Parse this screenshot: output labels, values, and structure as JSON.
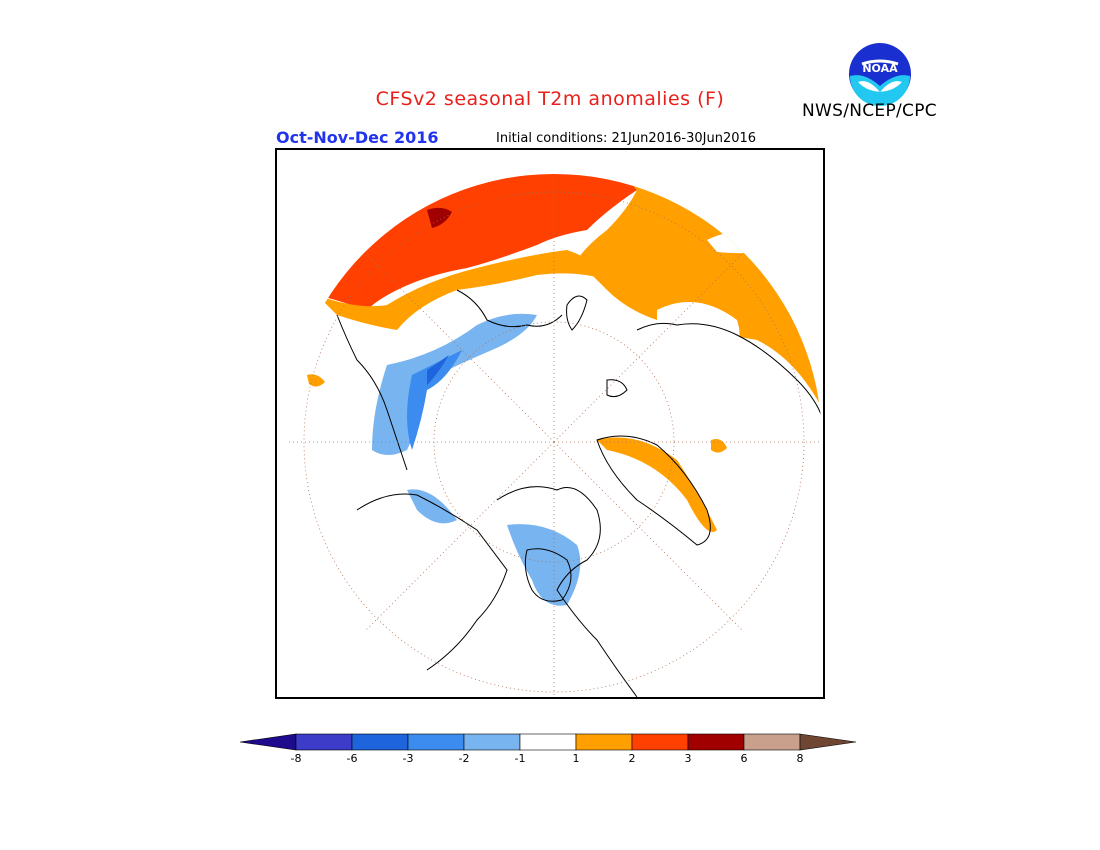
{
  "header": {
    "title": "CFSv2 seasonal T2m anomalies (F)",
    "season": "Oct-Nov-Dec 2016",
    "initial_conditions": "Initial conditions: 21Jun2016-30Jun2016",
    "agency": "NWS/NCEP/CPC",
    "logo_text": "NOAA"
  },
  "colors": {
    "title": "#e8201c",
    "season": "#2233ee",
    "land_outline": "#000000",
    "grid": "#b07050"
  },
  "legend": {
    "labels": [
      "-8",
      "-6",
      "-3",
      "-2",
      "-1",
      "1",
      "2",
      "3",
      "6",
      "8"
    ],
    "bins": [
      {
        "color": "#1e0a8c",
        "from": "<-8"
      },
      {
        "color": "#3c3cc8",
        "from": "-8",
        "to": "-6"
      },
      {
        "color": "#1e64dc",
        "from": "-6",
        "to": "-3"
      },
      {
        "color": "#3c8cf0",
        "from": "-3",
        "to": "-2"
      },
      {
        "color": "#78b4f0",
        "from": "-2",
        "to": "-1"
      },
      {
        "color": "#ffffff",
        "from": "-1",
        "to": "1"
      },
      {
        "color": "#ffa000",
        "from": "1",
        "to": "2"
      },
      {
        "color": "#ff4000",
        "from": "2",
        "to": "3"
      },
      {
        "color": "#a00000",
        "from": "3",
        "to": "6"
      },
      {
        "color": "#c8a08c",
        "from": "6",
        "to": "8"
      },
      {
        "color": "#6e4632",
        "from": ">8"
      }
    ]
  }
}
